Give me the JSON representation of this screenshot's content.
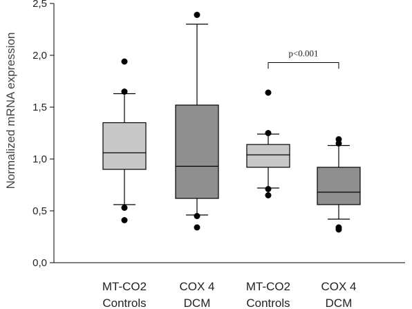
{
  "chart_data": {
    "type": "box",
    "ylabel": "Normalized mRNA expression",
    "ylim": [
      0,
      2.5
    ],
    "yticks": [
      {
        "value": 0.0,
        "label": "0,0"
      },
      {
        "value": 0.5,
        "label": "0,5"
      },
      {
        "value": 1.0,
        "label": "1,0"
      },
      {
        "value": 1.5,
        "label": "1,5"
      },
      {
        "value": 2.0,
        "label": "2,0"
      },
      {
        "value": 2.5,
        "label": "2,5"
      }
    ],
    "grid": false,
    "categories": [
      {
        "gene": "MT-CO2",
        "group": "Controls"
      },
      {
        "gene": "COX 4",
        "group": "DCM"
      },
      {
        "gene": "MT-CO2",
        "group": "Controls"
      },
      {
        "gene": "COX 4",
        "group": "DCM"
      }
    ],
    "boxes": [
      {
        "whisker_low": 0.56,
        "q1": 0.9,
        "median": 1.06,
        "q3": 1.35,
        "whisker_high": 1.63,
        "outliers": [
          0.41,
          0.53,
          1.65,
          1.94
        ],
        "color": "#c8c8c8"
      },
      {
        "whisker_low": 0.46,
        "q1": 0.62,
        "median": 0.93,
        "q3": 1.52,
        "whisker_high": 2.3,
        "outliers": [
          0.34,
          0.45,
          2.39
        ],
        "color": "#8f8f8f"
      },
      {
        "whisker_low": 0.72,
        "q1": 0.92,
        "median": 1.04,
        "q3": 1.14,
        "whisker_high": 1.24,
        "outliers": [
          0.65,
          0.71,
          1.25,
          1.64
        ],
        "color": "#c8c8c8"
      },
      {
        "whisker_low": 0.42,
        "q1": 0.56,
        "median": 0.68,
        "q3": 0.92,
        "whisker_high": 1.13,
        "outliers": [
          0.32,
          0.34,
          1.15,
          1.19
        ],
        "color": "#8f8f8f"
      }
    ],
    "annotations": [
      {
        "text": "p<0.001",
        "from_category": 2,
        "to_category": 3,
        "y": 1.93
      }
    ]
  }
}
